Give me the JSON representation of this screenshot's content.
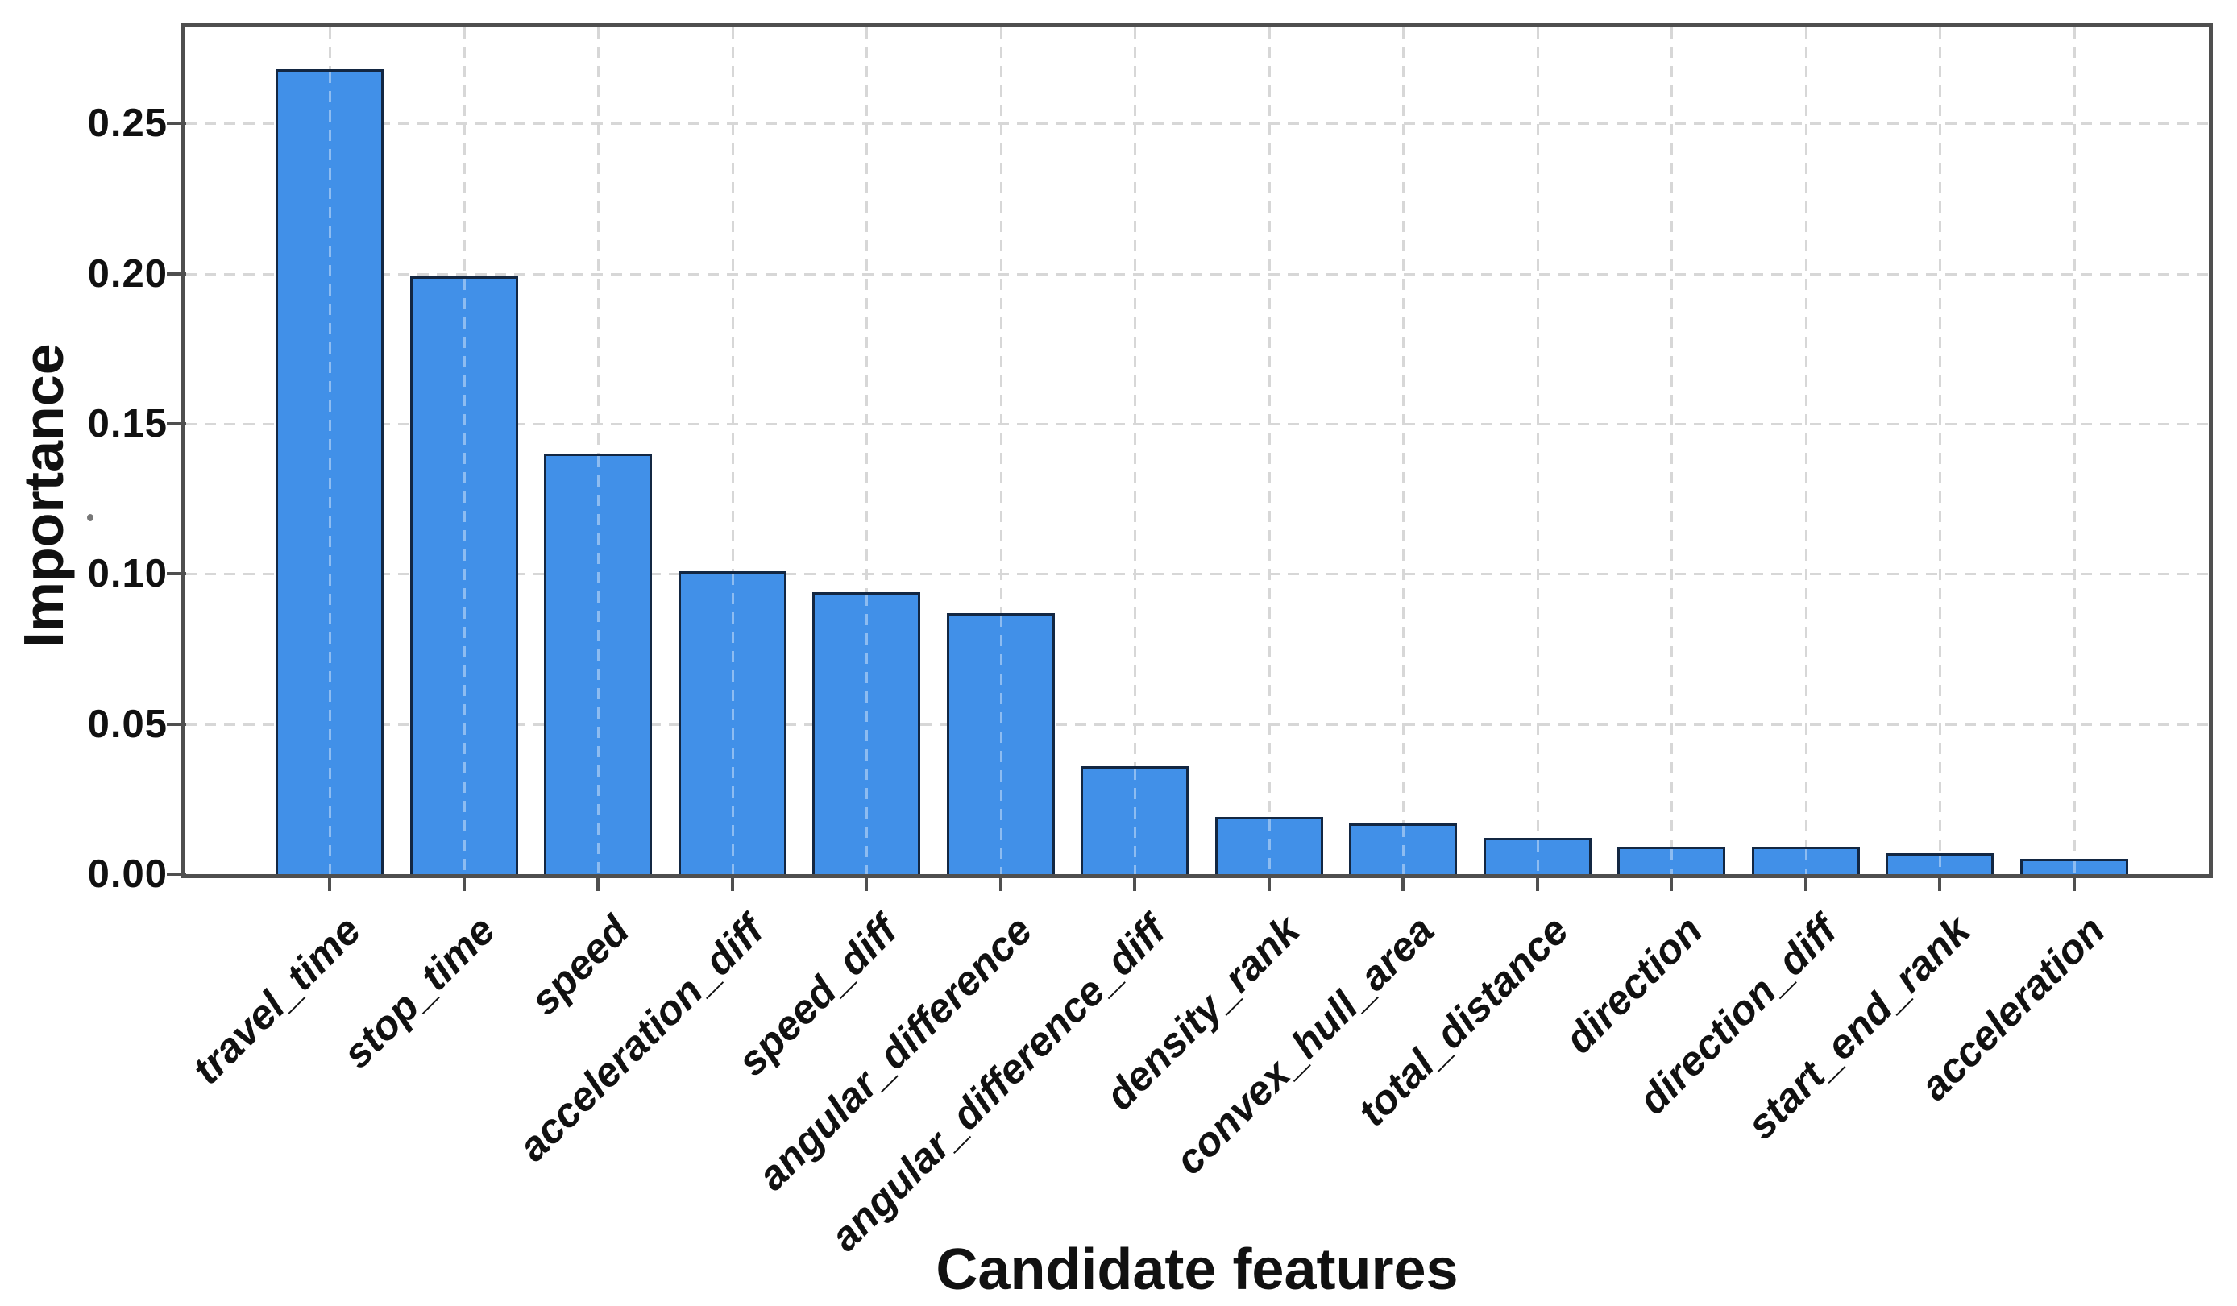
{
  "chart_data": {
    "type": "bar",
    "title": "",
    "xlabel": "Candidate features",
    "ylabel": "Importance",
    "categories": [
      "travel_time",
      "stop_time",
      "speed",
      "acceleration_diff",
      "speed_diff",
      "angular_difference",
      "angular_difference_diff",
      "density_rank",
      "convex_hull_area",
      "total_distance",
      "direction",
      "direction_diff",
      "start_end_rank",
      "acceleration"
    ],
    "values": [
      0.268,
      0.199,
      0.14,
      0.101,
      0.094,
      0.087,
      0.036,
      0.019,
      0.017,
      0.012,
      0.009,
      0.009,
      0.007,
      0.005
    ],
    "ylim": [
      0,
      0.282
    ],
    "yticks": [
      0.0,
      0.05,
      0.1,
      0.15,
      0.2,
      0.25
    ],
    "ytick_labels": [
      "0.00",
      "0.05",
      "0.10",
      "0.15",
      "0.20",
      "0.25"
    ],
    "grid": "dashed",
    "legend": "none",
    "bar_color": "#4190e8",
    "bar_edge_color": "#132742",
    "spine_color": "#4f4f4f",
    "grid_color": "#d7d7d7",
    "text_color": "#111111"
  }
}
